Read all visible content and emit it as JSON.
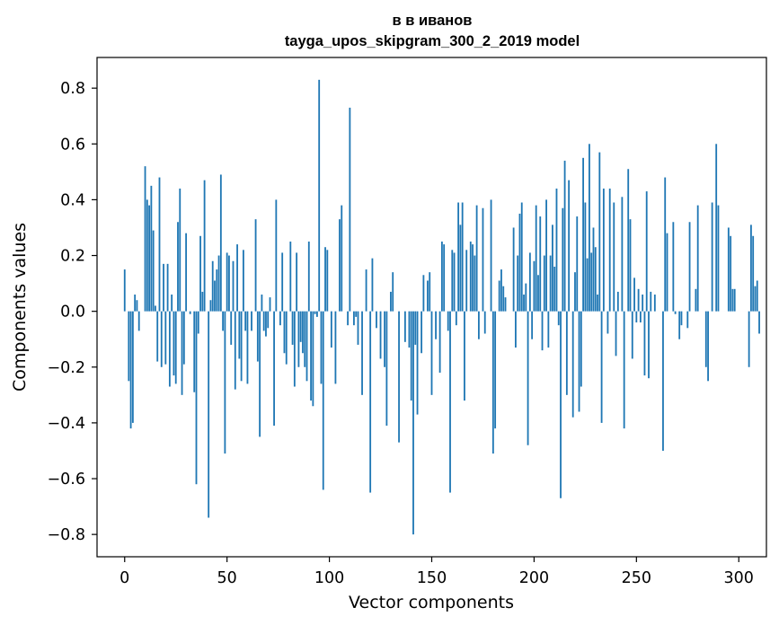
{
  "chart_data": {
    "type": "bar",
    "title": "в в иванов",
    "subtitle": "tayga_upos_skipgram_300_2_2019 model",
    "xlabel": "Vector components",
    "ylabel": "Components values",
    "xlim": [
      -13.5,
      313.5
    ],
    "ylim": [
      -0.88,
      0.91
    ],
    "xticks": [
      0,
      50,
      100,
      150,
      200,
      250,
      300
    ],
    "yticks": [
      -0.8,
      -0.6,
      -0.4,
      -0.2,
      0.0,
      0.2,
      0.4,
      0.6,
      0.8
    ],
    "ytick_labels": [
      "−0.8",
      "−0.6",
      "−0.4",
      "−0.2",
      "0.0",
      "0.2",
      "0.4",
      "0.6",
      "0.8"
    ],
    "bar_color": "#1f77b4",
    "grid": false,
    "x_start": 0,
    "values": [
      0.15,
      0.0,
      -0.25,
      -0.42,
      -0.4,
      0.06,
      0.04,
      -0.07,
      0.0,
      0.0,
      0.52,
      0.4,
      0.38,
      0.45,
      0.29,
      0.02,
      -0.18,
      0.48,
      -0.2,
      0.17,
      -0.19,
      0.17,
      -0.27,
      0.06,
      -0.23,
      -0.26,
      0.32,
      0.44,
      -0.3,
      -0.19,
      0.28,
      0.0,
      -0.01,
      0.0,
      -0.29,
      -0.62,
      -0.08,
      0.27,
      0.07,
      0.47,
      0.0,
      -0.74,
      0.04,
      0.18,
      0.11,
      0.15,
      0.2,
      0.49,
      -0.07,
      -0.51,
      0.21,
      0.2,
      -0.12,
      0.18,
      -0.28,
      0.24,
      -0.17,
      -0.25,
      0.22,
      -0.07,
      -0.26,
      0.0,
      -0.07,
      0.0,
      0.33,
      -0.18,
      -0.45,
      0.06,
      -0.07,
      -0.09,
      -0.06,
      0.05,
      0.0,
      -0.41,
      0.4,
      0.0,
      -0.05,
      0.21,
      -0.15,
      -0.19,
      0.0,
      0.25,
      -0.12,
      -0.27,
      0.21,
      -0.2,
      -0.11,
      -0.15,
      -0.2,
      -0.25,
      0.25,
      -0.32,
      -0.34,
      -0.01,
      -0.02,
      0.83,
      -0.26,
      -0.64,
      0.23,
      0.22,
      0.0,
      -0.13,
      0.0,
      -0.26,
      0.0,
      0.33,
      0.38,
      0.0,
      0.0,
      -0.05,
      0.73,
      0.0,
      -0.05,
      -0.02,
      -0.12,
      0.0,
      -0.3,
      0.0,
      0.15,
      0.0,
      -0.65,
      0.19,
      0.0,
      -0.06,
      0.0,
      -0.17,
      0.0,
      -0.2,
      -0.41,
      0.0,
      0.07,
      0.14,
      0.0,
      0.0,
      -0.47,
      0.0,
      0.0,
      -0.11,
      0.0,
      -0.13,
      -0.32,
      -0.8,
      -0.12,
      -0.37,
      0.0,
      -0.15,
      0.13,
      0.0,
      0.11,
      0.14,
      -0.3,
      0.0,
      -0.1,
      0.0,
      -0.22,
      0.25,
      0.24,
      0.0,
      -0.07,
      -0.65,
      0.22,
      0.21,
      -0.05,
      0.39,
      0.31,
      0.39,
      -0.32,
      0.22,
      0.0,
      0.25,
      0.24,
      0.2,
      0.38,
      -0.1,
      0.0,
      0.37,
      -0.08,
      0.0,
      0.0,
      0.4,
      -0.51,
      -0.42,
      0.0,
      0.11,
      0.15,
      0.09,
      0.05,
      0.0,
      0.0,
      0.0,
      0.3,
      -0.13,
      0.2,
      0.35,
      0.39,
      0.06,
      0.1,
      -0.48,
      0.21,
      -0.1,
      0.18,
      0.38,
      0.13,
      0.34,
      -0.14,
      0.2,
      0.4,
      -0.13,
      0.2,
      0.31,
      0.16,
      0.44,
      -0.05,
      -0.67,
      0.37,
      0.54,
      -0.3,
      0.47,
      0.0,
      -0.38,
      0.14,
      0.34,
      -0.36,
      -0.27,
      0.55,
      0.39,
      0.19,
      0.6,
      0.21,
      0.3,
      0.23,
      0.06,
      0.57,
      -0.4,
      0.44,
      0.0,
      -0.08,
      0.44,
      0.0,
      0.39,
      -0.16,
      0.07,
      0.0,
      0.41,
      -0.42,
      0.0,
      0.51,
      0.33,
      -0.17,
      0.12,
      -0.04,
      0.08,
      -0.04,
      0.06,
      -0.23,
      0.43,
      -0.24,
      0.07,
      0.0,
      0.06,
      0.0,
      0.0,
      0.0,
      -0.5,
      0.48,
      0.28,
      0.0,
      0.0,
      0.32,
      -0.01,
      0.0,
      -0.1,
      -0.05,
      0.0,
      0.0,
      -0.06,
      0.32,
      0.0,
      0.0,
      0.08,
      0.38,
      0.0,
      0.0,
      0.0,
      -0.2,
      -0.25,
      0.0,
      0.39,
      0.0,
      0.6,
      0.38,
      0.0,
      0.0,
      0.0,
      0.0,
      0.3,
      0.27,
      0.08,
      0.08,
      0.0,
      0.0,
      0.0,
      0.0,
      0.0,
      0.0,
      -0.2,
      0.31,
      0.27,
      0.09,
      0.11,
      -0.08
    ]
  }
}
